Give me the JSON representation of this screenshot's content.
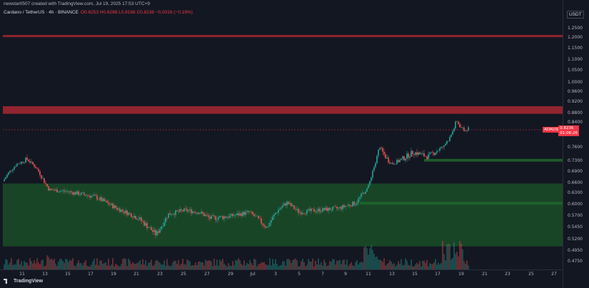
{
  "header": {
    "creator_line": "newstar0507 created with TradingView.com, Jul 19, 2025 17:53 UTC+9",
    "symbol": "Cardano / TetherUS · 4h · BINANCE",
    "ohlc": "O0.8253 H0.8288 L0.8186 C0.8236 −0.0016 (−0.19%)"
  },
  "price_axis": {
    "currency": "USDT",
    "ticks": [
      "1.2500",
      "1.2000",
      "1.1500",
      "1.1000",
      "1.0500",
      "1.0000",
      "0.9600",
      "0.9200",
      "0.8800",
      "0.8400",
      "0.8236",
      "0.7600",
      "0.7300",
      "0.6900",
      "0.6600",
      "0.6300",
      "0.6000",
      "0.5700",
      "0.5450",
      "0.5200",
      "0.4950",
      "0.4750"
    ],
    "last_price_label": "ADAUSDT",
    "last_price": "0.8236",
    "countdown": "01:06:26"
  },
  "time_axis": {
    "ticks": [
      "11",
      "13",
      "15",
      "17",
      "19",
      "21",
      "23",
      "25",
      "27",
      "29",
      "Jul",
      "3",
      "5",
      "7",
      "9",
      "11",
      "13",
      "15",
      "17",
      "19",
      "21",
      "23",
      "25",
      "27"
    ]
  },
  "footer": {
    "brand": "TradingView"
  },
  "colors": {
    "up": "#26a69a",
    "down": "#ef5350",
    "resistance_zone": "#b22833",
    "support_zone": "#1f6b2c"
  },
  "zones": [
    {
      "kind": "resistance",
      "from": 1.205,
      "to": 1.215
    },
    {
      "kind": "resistance",
      "from": 0.878,
      "to": 0.905
    },
    {
      "kind": "support",
      "from": 0.728,
      "to": 0.735
    },
    {
      "kind": "support",
      "from": 0.6,
      "to": 0.607
    },
    {
      "kind": "support",
      "from": 0.505,
      "to": 0.659
    }
  ],
  "chart_data": {
    "type": "candlestick",
    "ylim": [
      0.47,
      1.27
    ],
    "last_price": 0.8236
  }
}
